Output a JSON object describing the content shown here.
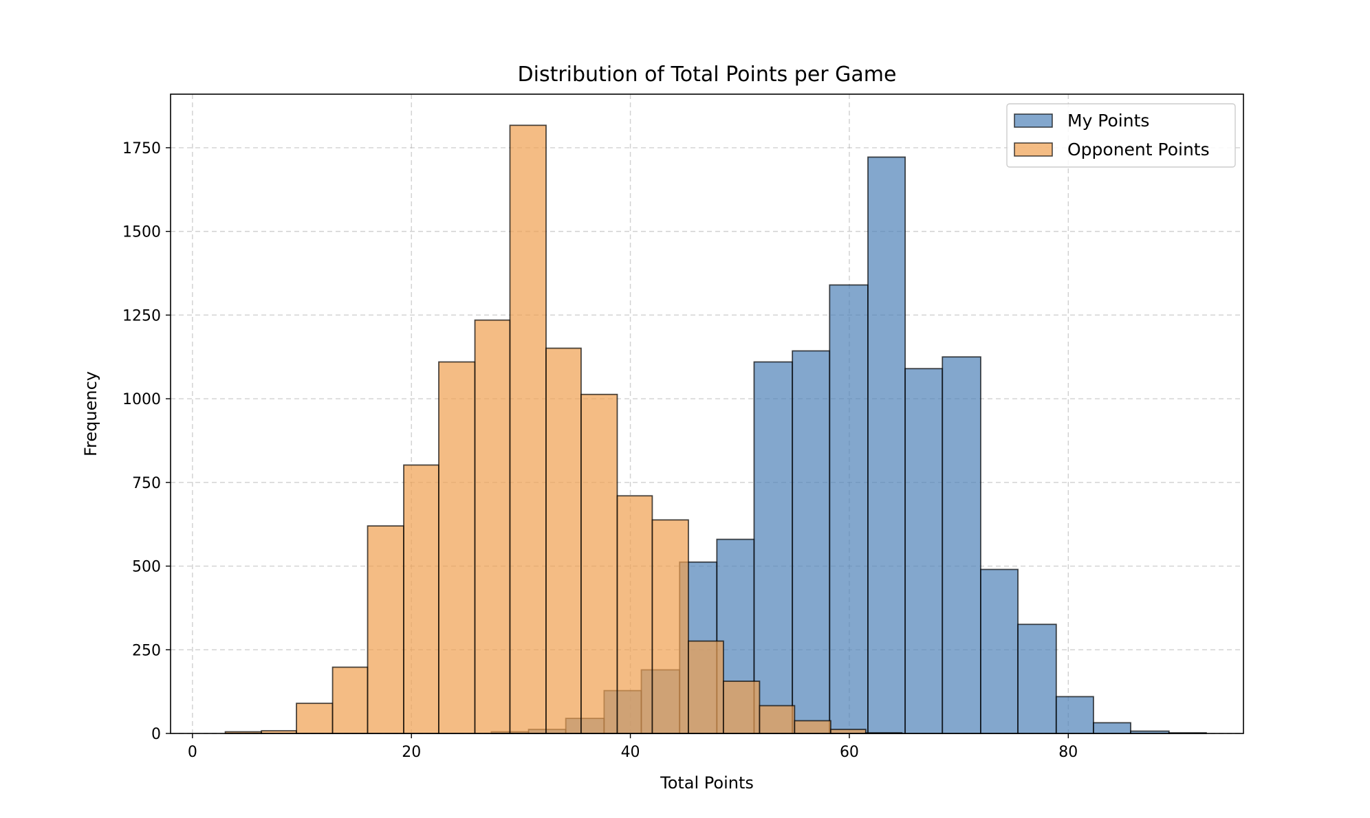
{
  "chart_data": {
    "type": "bar",
    "title": "Distribution of Total Points per Game",
    "xlabel": "Total Points",
    "ylabel": "Frequency",
    "xlim": [
      -2,
      96
    ],
    "ylim": [
      0,
      1910
    ],
    "xticks": [
      0,
      20,
      40,
      60,
      80
    ],
    "yticks": [
      0,
      250,
      500,
      750,
      1000,
      1250,
      1500,
      1750
    ],
    "grid": true,
    "legend_position": "top-right",
    "series": [
      {
        "name": "My Points",
        "color": "#4f81b8",
        "bin_edges": [
          27.3,
          30.7,
          34.1,
          37.6,
          41.0,
          44.5,
          47.9,
          51.3,
          54.8,
          58.2,
          61.7,
          65.1,
          68.5,
          72.0,
          75.4,
          78.9,
          82.3,
          85.7,
          89.2,
          92.6
        ],
        "values": [
          5,
          12,
          45,
          128,
          190,
          512,
          580,
          1110,
          1143,
          1340,
          1722,
          1090,
          1125,
          490,
          326,
          110,
          32,
          7,
          2
        ]
      },
      {
        "name": "Opponent Points",
        "color": "#f0a050",
        "bin_edges": [
          3.0,
          6.3,
          9.5,
          12.8,
          16.0,
          19.3,
          22.5,
          25.8,
          29.0,
          32.3,
          35.5,
          38.8,
          42.0,
          45.3,
          48.5,
          51.8,
          55.0,
          58.3,
          61.5,
          64.8
        ],
        "values": [
          5,
          8,
          90,
          198,
          620,
          802,
          1110,
          1235,
          1817,
          1151,
          1013,
          710,
          638,
          276,
          156,
          83,
          38,
          12,
          2
        ]
      }
    ]
  }
}
